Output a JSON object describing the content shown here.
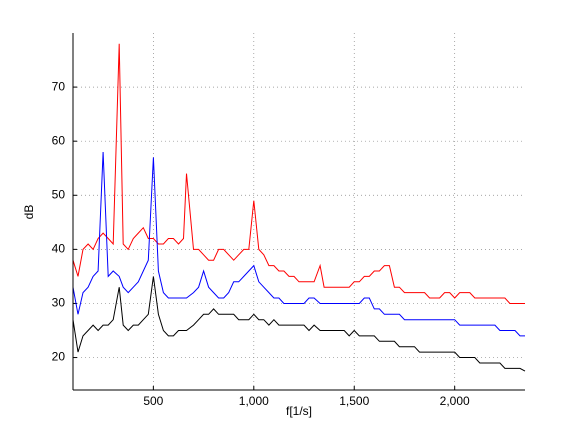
{
  "chart_data": {
    "type": "line",
    "xlabel": "f[1/s]",
    "ylabel": "dB",
    "x": [
      100,
      125,
      150,
      175,
      200,
      225,
      250,
      275,
      300,
      330,
      350,
      375,
      400,
      425,
      450,
      475,
      500,
      525,
      550,
      575,
      600,
      625,
      650,
      665,
      700,
      725,
      750,
      775,
      800,
      825,
      850,
      875,
      900,
      925,
      950,
      975,
      1000,
      1025,
      1050,
      1075,
      1100,
      1125,
      1150,
      1175,
      1200,
      1225,
      1250,
      1275,
      1300,
      1330,
      1350,
      1375,
      1400,
      1425,
      1450,
      1475,
      1500,
      1525,
      1550,
      1575,
      1600,
      1625,
      1650,
      1675,
      1700,
      1725,
      1750,
      1775,
      1800,
      1825,
      1850,
      1875,
      1900,
      1925,
      1950,
      1975,
      2000,
      2025,
      2050,
      2075,
      2100,
      2125,
      2150,
      2175,
      2200,
      2225,
      2250,
      2275,
      2300,
      2325,
      2350
    ],
    "series": [
      {
        "color": "#ff0000",
        "values": [
          38,
          35,
          40,
          41,
          40,
          42,
          43,
          42,
          41,
          78,
          41,
          40,
          42,
          43,
          44,
          42,
          42,
          41,
          41,
          42,
          42,
          41,
          42,
          54,
          40,
          40,
          39,
          38,
          38,
          40,
          40,
          39,
          38,
          39,
          40,
          40,
          49,
          40,
          39,
          37,
          37,
          36,
          36,
          35,
          35,
          34,
          34,
          34,
          34,
          37,
          33,
          33,
          33,
          33,
          33,
          33,
          34,
          34,
          35,
          35,
          36,
          36,
          37,
          37,
          33,
          33,
          32,
          32,
          32,
          32,
          32,
          31,
          31,
          31,
          32,
          32,
          31,
          32,
          32,
          32,
          31,
          31,
          31,
          31,
          31,
          31,
          31,
          30,
          30,
          30,
          30
        ]
      },
      {
        "color": "#0000ff",
        "values": [
          33,
          28,
          32,
          33,
          35,
          36,
          58,
          35,
          36,
          35,
          33,
          32,
          33,
          34,
          36,
          38,
          57,
          36,
          32,
          31,
          31,
          31,
          31,
          31,
          32,
          33,
          36,
          33,
          32,
          31,
          31,
          32,
          34,
          34,
          35,
          36,
          37,
          34,
          33,
          32,
          31,
          31,
          30,
          30,
          30,
          30,
          30,
          31,
          31,
          30,
          30,
          30,
          30,
          30,
          30,
          30,
          30,
          30,
          31,
          31,
          29,
          29,
          28,
          28,
          28,
          28,
          27,
          27,
          27,
          27,
          27,
          27,
          27,
          27,
          27,
          27,
          27,
          26,
          26,
          26,
          26,
          26,
          26,
          26,
          26,
          25,
          25,
          25,
          25,
          24,
          24
        ]
      },
      {
        "color": "#000000",
        "values": [
          27,
          21,
          24,
          25,
          26,
          25,
          26,
          26,
          27,
          33,
          26,
          25,
          26,
          26,
          27,
          28,
          35,
          28,
          25,
          24,
          24,
          25,
          25,
          25,
          26,
          27,
          28,
          28,
          29,
          28,
          28,
          28,
          28,
          27,
          27,
          27,
          28,
          27,
          27,
          26,
          27,
          26,
          26,
          26,
          26,
          26,
          26,
          25,
          26,
          25,
          25,
          25,
          25,
          25,
          25,
          24,
          25,
          24,
          24,
          24,
          24,
          23,
          23,
          23,
          23,
          22,
          22,
          22,
          22,
          21,
          21,
          21,
          21,
          21,
          21,
          21,
          21,
          20,
          20,
          20,
          20,
          19,
          19,
          19,
          19,
          19,
          18,
          18,
          18,
          18,
          17.5
        ]
      }
    ],
    "xlim": [
      100,
      2350
    ],
    "ylim": [
      14,
      80
    ],
    "xticks": [
      500,
      {
        "value": 1000,
        "label": "1,000"
      },
      {
        "value": 1500,
        "label": "1,500"
      },
      {
        "value": 2000,
        "label": "2,000"
      }
    ],
    "yticks": [
      20,
      30,
      40,
      50,
      60,
      70
    ],
    "grid": true
  }
}
